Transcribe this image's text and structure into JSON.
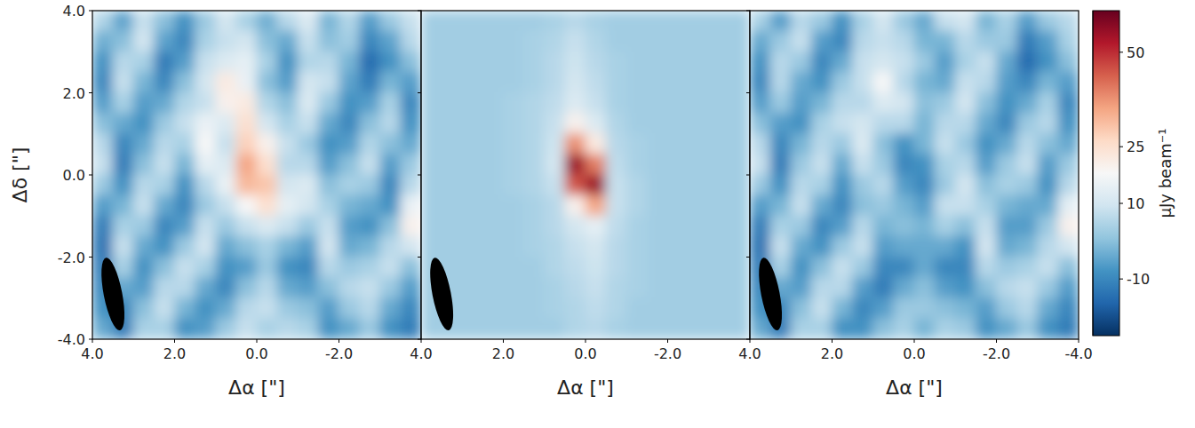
{
  "chart_data": [
    {
      "type": "heatmap",
      "xlabel": "Δα [\"]",
      "ylabel": "Δδ [\"]",
      "tick_labels": true,
      "xlim": [
        4,
        -4
      ],
      "ylim": [
        -4,
        4
      ],
      "xticks": [
        {
          "value": 4,
          "label": "4.0"
        },
        {
          "value": 2,
          "label": "2.0"
        },
        {
          "value": 0,
          "label": "0.0"
        },
        {
          "value": -2,
          "label": "-2.0"
        }
      ],
      "yticks": [
        {
          "value": 4,
          "label": "4.0"
        },
        {
          "value": 2,
          "label": "2.0"
        },
        {
          "value": 0,
          "label": "0.0"
        },
        {
          "value": -2,
          "label": "-2.0"
        },
        {
          "value": -4,
          "label": "-4.0"
        }
      ],
      "x": [
        3.75,
        3.25,
        2.75,
        2.25,
        1.75,
        1.25,
        0.75,
        0.25,
        -0.25,
        -0.75,
        -1.25,
        -1.75,
        -2.25,
        -2.75,
        -3.25,
        -3.75
      ],
      "y": [
        3.75,
        3.25,
        2.75,
        2.25,
        1.75,
        1.25,
        0.75,
        0.25,
        -0.25,
        -0.75,
        -1.25,
        -1.75,
        -2.25,
        -2.75,
        -3.25,
        -3.75
      ],
      "cells": [
        [
          5,
          -5,
          8,
          0,
          -8,
          2,
          10,
          4,
          -3,
          6,
          12,
          -2,
          5,
          -6,
          2,
          8
        ],
        [
          -3,
          0,
          10,
          -5,
          -10,
          4,
          8,
          10,
          0,
          -4,
          8,
          0,
          3,
          -10,
          -5,
          6
        ],
        [
          -8,
          6,
          4,
          -12,
          -6,
          8,
          12,
          14,
          4,
          -8,
          5,
          6,
          -2,
          -15,
          -8,
          0
        ],
        [
          -10,
          8,
          -2,
          -10,
          0,
          10,
          22,
          15,
          0,
          -6,
          10,
          8,
          -5,
          -12,
          -2,
          -6
        ],
        [
          -6,
          4,
          -6,
          -4,
          5,
          8,
          20,
          22,
          5,
          0,
          12,
          2,
          -8,
          -6,
          4,
          -10
        ],
        [
          0,
          -4,
          -8,
          2,
          8,
          15,
          12,
          25,
          10,
          4,
          8,
          -4,
          -10,
          0,
          6,
          -8
        ],
        [
          6,
          -10,
          -4,
          6,
          4,
          18,
          8,
          28,
          20,
          8,
          2,
          -8,
          -6,
          5,
          0,
          -4
        ],
        [
          8,
          -12,
          0,
          8,
          -2,
          14,
          12,
          35,
          25,
          6,
          6,
          -6,
          0,
          8,
          -6,
          2
        ],
        [
          2,
          -8,
          6,
          4,
          -8,
          6,
          15,
          32,
          30,
          10,
          12,
          0,
          4,
          2,
          -10,
          6
        ],
        [
          -6,
          -2,
          8,
          -4,
          -10,
          2,
          8,
          18,
          25,
          14,
          10,
          4,
          -2,
          -4,
          -8,
          15
        ],
        [
          -12,
          4,
          2,
          -10,
          -6,
          8,
          2,
          8,
          12,
          8,
          2,
          8,
          -6,
          -8,
          0,
          20
        ],
        [
          -14,
          8,
          -4,
          -8,
          2,
          10,
          -4,
          0,
          4,
          -2,
          -6,
          10,
          -4,
          -2,
          6,
          10
        ],
        [
          -12,
          4,
          -8,
          0,
          8,
          4,
          -8,
          -6,
          2,
          -8,
          -10,
          6,
          2,
          4,
          8,
          0
        ],
        [
          -10,
          -4,
          -6,
          6,
          6,
          -4,
          -10,
          0,
          6,
          -4,
          -6,
          0,
          6,
          8,
          2,
          -6
        ],
        [
          -8,
          -10,
          0,
          8,
          -2,
          -8,
          -4,
          6,
          8,
          2,
          0,
          -6,
          2,
          6,
          -4,
          -10
        ],
        [
          -4,
          -12,
          4,
          4,
          -8,
          -6,
          2,
          8,
          4,
          6,
          4,
          -8,
          -4,
          2,
          -8,
          -12
        ]
      ],
      "beam": {
        "x": 3.5,
        "y": -2.9,
        "major": 1.8,
        "minor": 0.45,
        "pa": 11
      }
    },
    {
      "type": "heatmap",
      "xlabel": "Δα [\"]",
      "tick_labels": "x",
      "xlim": [
        4,
        -4
      ],
      "ylim": [
        -4,
        4
      ],
      "xticks": [
        {
          "value": 4,
          "label": "4.0"
        },
        {
          "value": 2,
          "label": "2.0"
        },
        {
          "value": 0,
          "label": "0.0"
        },
        {
          "value": -2,
          "label": "-2.0"
        }
      ],
      "yticks": [
        4,
        2,
        0,
        -2,
        -4
      ],
      "x": [
        3.75,
        3.25,
        2.75,
        2.25,
        1.75,
        1.25,
        0.75,
        0.25,
        -0.25,
        -0.75,
        -1.25,
        -1.75,
        -2.25,
        -2.75,
        -3.25,
        -3.75
      ],
      "y": [
        3.75,
        3.25,
        2.75,
        2.25,
        1.75,
        1.25,
        0.75,
        0.25,
        -0.25,
        -0.75,
        -1.25,
        -1.75,
        -2.25,
        -2.75,
        -3.25,
        -3.75
      ],
      "cells": [
        [
          3,
          3,
          3,
          3,
          3,
          3,
          4,
          6,
          4,
          3,
          3,
          3,
          3,
          3,
          3,
          3
        ],
        [
          3,
          3,
          3,
          3,
          3,
          4,
          5,
          8,
          5,
          3,
          3,
          3,
          3,
          3,
          3,
          3
        ],
        [
          3,
          3,
          3,
          3,
          3,
          4,
          6,
          9,
          6,
          4,
          3,
          3,
          3,
          3,
          3,
          3
        ],
        [
          3,
          3,
          3,
          3,
          3,
          4,
          6,
          10,
          7,
          4,
          3,
          3,
          3,
          3,
          3,
          3
        ],
        [
          3,
          3,
          3,
          3,
          4,
          5,
          7,
          12,
          8,
          4,
          3,
          3,
          3,
          3,
          3,
          3
        ],
        [
          3,
          3,
          3,
          3,
          4,
          5,
          8,
          20,
          12,
          5,
          3,
          3,
          3,
          3,
          3,
          3
        ],
        [
          3,
          3,
          3,
          3,
          4,
          5,
          9,
          38,
          22,
          6,
          4,
          3,
          3,
          3,
          3,
          3
        ],
        [
          3,
          3,
          3,
          3,
          4,
          5,
          10,
          55,
          40,
          7,
          4,
          3,
          3,
          3,
          3,
          3
        ],
        [
          3,
          3,
          3,
          3,
          4,
          5,
          8,
          45,
          55,
          8,
          5,
          3,
          3,
          3,
          3,
          3
        ],
        [
          3,
          3,
          3,
          3,
          3,
          4,
          6,
          20,
          35,
          8,
          5,
          3,
          3,
          3,
          3,
          3
        ],
        [
          3,
          3,
          3,
          3,
          3,
          4,
          6,
          10,
          14,
          7,
          4,
          3,
          3,
          3,
          3,
          3
        ],
        [
          3,
          3,
          3,
          3,
          3,
          4,
          5,
          8,
          10,
          6,
          4,
          3,
          3,
          3,
          3,
          3
        ],
        [
          3,
          3,
          3,
          3,
          3,
          3,
          5,
          7,
          9,
          6,
          4,
          3,
          3,
          3,
          3,
          3
        ],
        [
          3,
          3,
          3,
          3,
          3,
          3,
          4,
          6,
          8,
          5,
          4,
          3,
          3,
          3,
          3,
          3
        ],
        [
          3,
          3,
          3,
          3,
          3,
          3,
          4,
          5,
          7,
          5,
          3,
          3,
          3,
          3,
          3,
          3
        ],
        [
          3,
          3,
          3,
          3,
          3,
          3,
          3,
          5,
          6,
          4,
          3,
          3,
          3,
          3,
          3,
          3
        ]
      ],
      "beam": {
        "x": 3.5,
        "y": -2.9,
        "major": 1.8,
        "minor": 0.45,
        "pa": 11
      }
    },
    {
      "type": "heatmap",
      "xlabel": "Δα [\"]",
      "tick_labels": "x",
      "xlim": [
        4,
        -4
      ],
      "ylim": [
        -4,
        4
      ],
      "xticks": [
        {
          "value": 4,
          "label": "4.0"
        },
        {
          "value": 2,
          "label": "2.0"
        },
        {
          "value": 0,
          "label": "0.0"
        },
        {
          "value": -2,
          "label": "-2.0"
        },
        {
          "value": -4,
          "label": "-4.0"
        }
      ],
      "yticks": [
        4,
        2,
        0,
        -2,
        -4
      ],
      "x": [
        3.75,
        3.25,
        2.75,
        2.25,
        1.75,
        1.25,
        0.75,
        0.25,
        -0.25,
        -0.75,
        -1.25,
        -1.75,
        -2.25,
        -2.75,
        -3.25,
        -3.75
      ],
      "y": [
        3.75,
        3.25,
        2.75,
        2.25,
        1.75,
        1.25,
        0.75,
        0.25,
        -0.25,
        -0.75,
        -1.25,
        -1.75,
        -2.25,
        -2.75,
        -3.25,
        -3.75
      ],
      "cells": [
        [
          4,
          -6,
          6,
          2,
          -8,
          4,
          10,
          2,
          -4,
          8,
          10,
          -2,
          4,
          -6,
          2,
          6
        ],
        [
          -4,
          2,
          8,
          -6,
          -10,
          6,
          8,
          6,
          -2,
          -2,
          6,
          2,
          2,
          -12,
          -6,
          4
        ],
        [
          -8,
          6,
          2,
          -10,
          -4,
          8,
          10,
          8,
          2,
          -6,
          4,
          8,
          -4,
          -15,
          -8,
          0
        ],
        [
          -10,
          6,
          -4,
          -8,
          2,
          8,
          18,
          6,
          -2,
          -4,
          8,
          6,
          -6,
          -10,
          -2,
          -6
        ],
        [
          -6,
          2,
          -6,
          -2,
          6,
          6,
          12,
          10,
          0,
          2,
          10,
          0,
          -8,
          -4,
          4,
          -10
        ],
        [
          0,
          -6,
          -8,
          4,
          8,
          10,
          6,
          6,
          -2,
          6,
          6,
          -4,
          -10,
          2,
          6,
          -8
        ],
        [
          6,
          -10,
          -2,
          6,
          2,
          12,
          0,
          -8,
          -2,
          8,
          2,
          -8,
          -4,
          6,
          0,
          -4
        ],
        [
          8,
          -12,
          2,
          8,
          -4,
          8,
          2,
          -10,
          -8,
          4,
          6,
          -6,
          2,
          8,
          -6,
          2
        ],
        [
          2,
          -8,
          6,
          4,
          -8,
          2,
          6,
          -6,
          -10,
          2,
          10,
          0,
          4,
          2,
          -8,
          6
        ],
        [
          -6,
          -2,
          8,
          -4,
          -10,
          0,
          2,
          -2,
          -6,
          8,
          8,
          4,
          -2,
          -4,
          -4,
          14
        ],
        [
          -12,
          4,
          2,
          -10,
          -6,
          6,
          -2,
          0,
          -2,
          4,
          0,
          8,
          -6,
          -6,
          2,
          20
        ],
        [
          -14,
          8,
          -4,
          -8,
          2,
          8,
          -6,
          -4,
          -4,
          -4,
          -8,
          10,
          -4,
          -2,
          6,
          10
        ],
        [
          -12,
          4,
          -8,
          0,
          8,
          2,
          -10,
          -10,
          -4,
          -10,
          -10,
          6,
          2,
          4,
          8,
          0
        ],
        [
          -10,
          -4,
          -6,
          6,
          6,
          -6,
          -12,
          -4,
          0,
          -6,
          -8,
          0,
          6,
          8,
          2,
          -6
        ],
        [
          -8,
          -10,
          0,
          8,
          -2,
          -10,
          -6,
          2,
          2,
          0,
          -2,
          -6,
          2,
          6,
          -4,
          -10
        ],
        [
          -4,
          -12,
          4,
          4,
          -8,
          -8,
          0,
          4,
          -2,
          4,
          2,
          -8,
          -4,
          2,
          -8,
          -12
        ]
      ],
      "beam": {
        "x": 3.5,
        "y": -2.9,
        "major": 1.8,
        "minor": 0.45,
        "pa": 11
      }
    }
  ],
  "colorbar": {
    "label": "μJy beam⁻¹",
    "range": [
      -25,
      61
    ],
    "ticks": [
      -10,
      10,
      25,
      50
    ]
  }
}
